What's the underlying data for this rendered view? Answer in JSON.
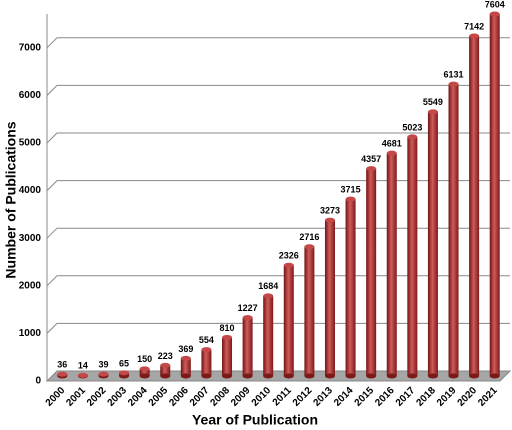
{
  "chart_data": {
    "type": "bar",
    "x_label": "Year of Publication",
    "y_label": "Number of Publications",
    "categories": [
      "2000",
      "2001",
      "2002",
      "2003",
      "2004",
      "2005",
      "2006",
      "2007",
      "2008",
      "2009",
      "2010",
      "2011",
      "2012",
      "2013",
      "2014",
      "2015",
      "2016",
      "2017",
      "2018",
      "2019",
      "2020",
      "2021"
    ],
    "values": [
      36,
      14,
      39,
      65,
      150,
      223,
      369,
      554,
      810,
      1227,
      1684,
      2326,
      2716,
      3273,
      3715,
      4357,
      4681,
      5023,
      5549,
      6131,
      7142,
      7604
    ],
    "color": "#a52a2a",
    "ylim": [
      0,
      7500
    ],
    "yticks": [
      0,
      1000,
      2000,
      3000,
      4000,
      5000,
      6000,
      7000
    ],
    "grid": true
  }
}
